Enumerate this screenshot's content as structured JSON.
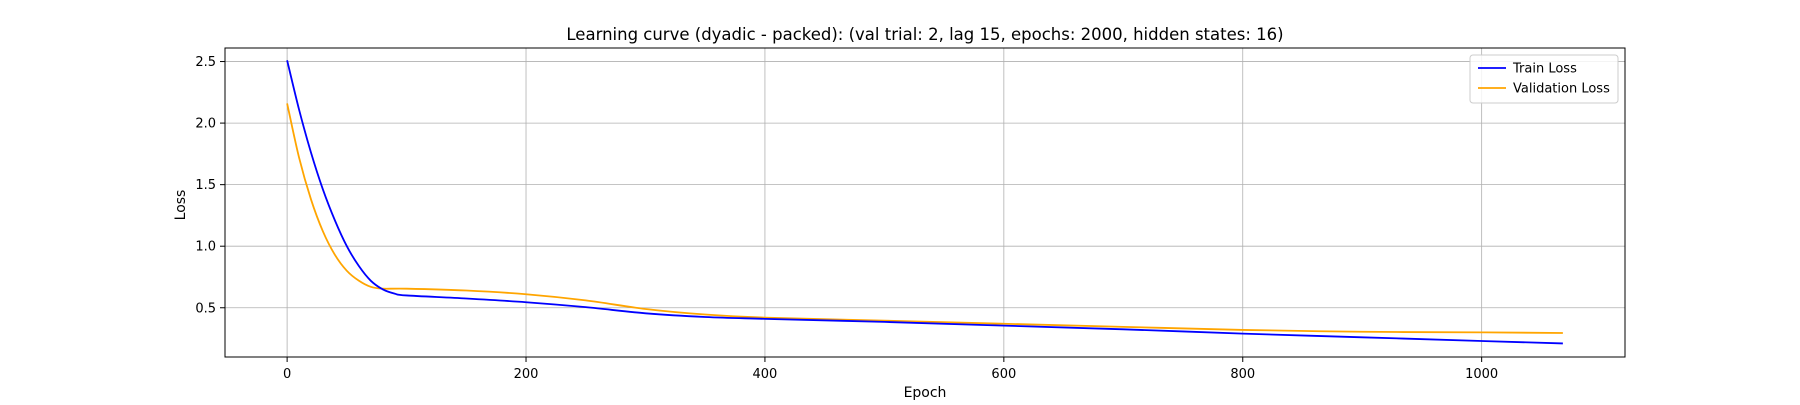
{
  "chart_data": {
    "type": "line",
    "title": "Learning curve (dyadic - packed): (val trial: 2, lag 15, epochs: 2000, hidden states: 16)",
    "xlabel": "Epoch",
    "ylabel": "Loss",
    "xlim": [
      -52,
      1120
    ],
    "ylim": [
      0.1,
      2.61
    ],
    "xticks": [
      0,
      200,
      400,
      600,
      800,
      1000
    ],
    "xtick_labels": [
      "0",
      "200",
      "400",
      "600",
      "800",
      "1000"
    ],
    "yticks": [
      0.5,
      1.0,
      1.5,
      2.0,
      2.5
    ],
    "ytick_labels": [
      "0.5",
      "1.0",
      "1.5",
      "2.0",
      "2.5"
    ],
    "grid": true,
    "legend_position": "top-right",
    "series": [
      {
        "name": "Train Loss",
        "color": "#0000ff",
        "x": [
          0,
          10,
          20,
          30,
          40,
          50,
          60,
          70,
          80,
          90,
          100,
          150,
          200,
          250,
          300,
          350,
          400,
          500,
          600,
          700,
          800,
          900,
          1000,
          1068
        ],
        "y": [
          2.51,
          2.11,
          1.76,
          1.46,
          1.21,
          1.0,
          0.84,
          0.72,
          0.65,
          0.615,
          0.6,
          0.575,
          0.545,
          0.505,
          0.455,
          0.425,
          0.41,
          0.385,
          0.355,
          0.325,
          0.29,
          0.26,
          0.23,
          0.21
        ]
      },
      {
        "name": "Validation Loss",
        "color": "#ffa500",
        "x": [
          0,
          10,
          20,
          30,
          40,
          50,
          60,
          70,
          80,
          100,
          150,
          200,
          250,
          300,
          350,
          400,
          500,
          600,
          700,
          800,
          900,
          1000,
          1068
        ],
        "y": [
          2.16,
          1.72,
          1.38,
          1.12,
          0.93,
          0.8,
          0.72,
          0.67,
          0.655,
          0.655,
          0.64,
          0.61,
          0.56,
          0.49,
          0.445,
          0.42,
          0.395,
          0.37,
          0.345,
          0.32,
          0.305,
          0.3,
          0.295
        ]
      }
    ]
  }
}
